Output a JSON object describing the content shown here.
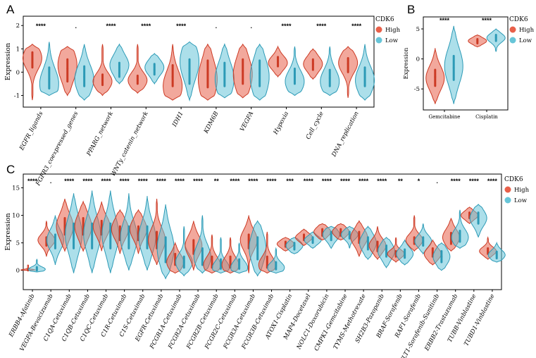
{
  "legend": {
    "title": "CDK6",
    "groups": [
      "High",
      "Low"
    ]
  },
  "colors": {
    "high": "#e8604a",
    "high_edge": "#cc3a24",
    "low": "#67c5d8",
    "low_edge": "#2c9ab6",
    "axis": "#000000"
  },
  "chart_data": [
    {
      "panel": "A",
      "type": "violin",
      "ylabel": "Expression",
      "ylim": [
        -1.5,
        2.4
      ],
      "yticks": [
        -1,
        0,
        1,
        2
      ],
      "categories": [
        "EGFR_ligands",
        "FGFR3_coexpressed_genes",
        "PPARG_network",
        "WNTy_catenin_network",
        "IDH1",
        "KDM6B",
        "VEGFA",
        "Hypoxia",
        "Cell_cycle",
        "DNA_replication"
      ],
      "significance": [
        "****",
        ".",
        "****",
        "****",
        "****",
        ".",
        ".",
        "****",
        "****",
        "****"
      ],
      "series": [
        {
          "name": "High",
          "min": [
            -1.2,
            -1.0,
            -1.0,
            -0.9,
            -1.2,
            -1.2,
            -1.1,
            -0.2,
            -0.3,
            -1.1
          ],
          "q1": [
            0.2,
            -0.4,
            -0.55,
            -0.5,
            -0.6,
            -0.65,
            -0.5,
            0.25,
            0.1,
            0.0
          ],
          "median": [
            0.55,
            0.15,
            -0.35,
            -0.35,
            -0.2,
            -0.1,
            0.05,
            0.45,
            0.35,
            0.35
          ],
          "q3": [
            0.85,
            0.55,
            -0.1,
            -0.15,
            0.3,
            0.5,
            0.55,
            0.65,
            0.55,
            0.6
          ],
          "max": [
            1.2,
            1.1,
            1.2,
            1.2,
            1.2,
            1.2,
            1.2,
            1.1,
            1.0,
            1.1
          ],
          "mode": [
            0.6,
            0.3,
            -0.4,
            -0.35,
            -0.6,
            -0.3,
            -0.1,
            0.4,
            0.35,
            0.4
          ]
        },
        {
          "name": "Low",
          "min": [
            -1.0,
            -1.2,
            -0.5,
            -0.5,
            -1.2,
            -1.1,
            -1.2,
            -1.0,
            -1.0,
            -1.2
          ],
          "q1": [
            -0.7,
            -0.6,
            -0.2,
            -0.1,
            -0.5,
            -0.6,
            -0.6,
            -0.5,
            -0.6,
            -0.6
          ],
          "median": [
            -0.3,
            -0.2,
            0.2,
            0.1,
            0.15,
            -0.05,
            -0.05,
            -0.2,
            -0.25,
            -0.2
          ],
          "q3": [
            0.2,
            0.25,
            0.4,
            0.35,
            0.55,
            0.4,
            0.5,
            0.15,
            0.1,
            0.2
          ],
          "max": [
            1.3,
            1.2,
            1.2,
            0.8,
            1.3,
            1.2,
            1.2,
            1.1,
            1.1,
            1.2
          ],
          "mode": [
            -0.5,
            -0.3,
            0.3,
            0.2,
            0.45,
            -0.3,
            -0.2,
            -0.4,
            -0.4,
            -0.35
          ]
        }
      ]
    },
    {
      "panel": "B",
      "type": "violin",
      "ylabel": "Expression",
      "ylim": [
        -8.5,
        7.0
      ],
      "yticks": [
        -5,
        0,
        5
      ],
      "categories": [
        "Gemcitabine",
        "Cisplatin"
      ],
      "significance": [
        "****",
        "****"
      ],
      "series": [
        {
          "name": "High",
          "min": [
            -7.5,
            2.0
          ],
          "q1": [
            -4.5,
            2.6
          ],
          "median": [
            -3.0,
            3.0
          ],
          "q3": [
            -1.8,
            3.3
          ],
          "max": [
            1.8,
            4.0
          ],
          "mode": [
            -3.2,
            3.0
          ]
        },
        {
          "name": "Low",
          "min": [
            -7.5,
            1.2
          ],
          "q1": [
            -3.5,
            3.0
          ],
          "median": [
            -1.5,
            3.6
          ],
          "q3": [
            0.5,
            4.0
          ],
          "max": [
            5.5,
            5.0
          ],
          "mode": [
            -1.2,
            3.5
          ]
        }
      ]
    },
    {
      "panel": "C",
      "type": "violin",
      "ylabel": "Expression",
      "ylim": [
        -3.5,
        17.5
      ],
      "yticks": [
        0,
        5,
        10,
        15
      ],
      "categories": [
        "ERBB4-Afatinib",
        "VEGFA-Bevacizumab",
        "C1QA-Cetuximab",
        "C1QB-Cetuximab",
        "C1QC-Cetuximab",
        "C1R-Cetuximab",
        "C1S-Cetuximab",
        "EGFR-Cetuximab",
        "FCGR1A-Cetuximab",
        "FCGR2A-Cetuximab",
        "FCGR2B-Cetuximab",
        "FCGR2C-Cetuximab",
        "FCGR3A-Cetuximab",
        "FCGR3B-Cetuximab",
        "ATOX1-Cisplatin",
        "MAP4-Docetaxel",
        "NOLC1-Doxorubicin",
        "CMPK1-Gemcitabine",
        "TYMS-Methotrexate",
        "SH2B3-Pazopanib",
        "BRAF-Sorafenib",
        "RAF1-Sorafenib",
        "FLT1-Sorafenib-Sunitinib",
        "ERBB2-Trastuzumab",
        "TUBB-Vinblastine",
        "TUBD1-Vinblastine"
      ],
      "significance": [
        "****",
        ".",
        "****",
        "****",
        "****",
        "****",
        "****",
        "****",
        "****",
        "****",
        "**",
        "****",
        "****",
        "****",
        "***",
        "****",
        "****",
        "****",
        "****",
        "****",
        "**",
        "*",
        ".",
        "****",
        "****",
        "****"
      ],
      "series": [
        {
          "name": "High",
          "min": [
            0,
            2.5,
            3.5,
            3.5,
            3.5,
            3,
            3,
            1,
            -0.5,
            0,
            -0.5,
            -0.5,
            -0.5,
            -0.5,
            3.5,
            4.5,
            5.5,
            5.5,
            2.5,
            2,
            1.5,
            3.5,
            1,
            3.5,
            8.5,
            2
          ],
          "q1": [
            0,
            4.5,
            6.5,
            6.5,
            6.5,
            5.5,
            5.5,
            4,
            1,
            3,
            0.5,
            0.5,
            4,
            0.5,
            4.3,
            5.5,
            6.3,
            6.3,
            5,
            3.5,
            2.5,
            4.8,
            2.5,
            4.8,
            9.5,
            3
          ],
          "median": [
            0.1,
            5.3,
            8,
            8,
            7.8,
            7,
            7,
            5.5,
            2,
            4.5,
            1.5,
            1.5,
            5.5,
            1.5,
            4.8,
            6,
            7,
            7,
            6,
            4.5,
            3,
            5.5,
            3.2,
            5.8,
            10,
            3.5
          ],
          "q3": [
            0.2,
            6,
            9.5,
            9.5,
            9,
            8,
            8,
            7,
            3,
            5.5,
            2.5,
            2.5,
            6.5,
            2.5,
            5.2,
            6.5,
            7.5,
            7.5,
            7,
            5.2,
            3.5,
            6,
            4,
            6.8,
            10.5,
            4
          ],
          "max": [
            1,
            9,
            13,
            12.5,
            12.5,
            11,
            11,
            13,
            5,
            9,
            6.5,
            6,
            10,
            7,
            6,
            7.5,
            8.5,
            8.5,
            9,
            8,
            6,
            10,
            5.5,
            9.5,
            11.5,
            6
          ],
          "mode": [
            0,
            5.5,
            8,
            8,
            8,
            7.5,
            7.5,
            5.5,
            1.5,
            4.5,
            1,
            1,
            5.5,
            1,
            4.8,
            6,
            7,
            7,
            6,
            4.5,
            3,
            5.5,
            3,
            6,
            10,
            3.5
          ]
        },
        {
          "name": "Low",
          "min": [
            -0.3,
            1,
            -0.5,
            -0.5,
            -0.5,
            0,
            0,
            -1.5,
            -1,
            -0.5,
            -0.5,
            -0.5,
            -1,
            -0.5,
            3,
            4,
            4,
            4,
            2,
            0.5,
            1,
            3,
            0,
            4,
            6,
            1.5
          ],
          "q1": [
            0,
            4,
            4,
            4,
            4,
            4,
            4,
            1.5,
            0.5,
            1,
            0.3,
            0.3,
            2,
            0.2,
            3.8,
            5,
            5.5,
            5.8,
            3.8,
            2.5,
            2.3,
            4.5,
            1.5,
            5.2,
            8.5,
            2.2
          ],
          "median": [
            0.3,
            5.5,
            6.5,
            6.5,
            6.5,
            6,
            6,
            4,
            1.5,
            2.5,
            1,
            1,
            4,
            0.8,
            4.5,
            5.5,
            6.5,
            6.5,
            5,
            3.5,
            3,
            5.3,
            2.5,
            6.2,
            9.5,
            2.8
          ],
          "q3": [
            0.6,
            6.5,
            8.5,
            8.5,
            8.5,
            8,
            8,
            6,
            2.5,
            4,
            2,
            2,
            6,
            1.5,
            5,
            6,
            7,
            7,
            6,
            4.5,
            3.8,
            6,
            3.5,
            7.2,
            10.5,
            3.4
          ],
          "max": [
            2,
            10,
            14,
            14.5,
            14.5,
            14,
            13.5,
            12,
            8,
            10,
            6,
            5,
            9,
            4,
            6,
            7,
            8,
            8,
            8,
            6,
            5.5,
            8.5,
            5,
            11,
            12,
            5
          ],
          "mode": [
            0.2,
            5.5,
            6.5,
            6.5,
            6.5,
            6,
            6,
            4,
            1.5,
            2.5,
            0.5,
            0.5,
            4,
            0.5,
            4.5,
            5.5,
            6.5,
            6.5,
            5,
            3.5,
            3,
            5.3,
            2.5,
            6,
            9.5,
            2.8
          ]
        }
      ]
    }
  ]
}
